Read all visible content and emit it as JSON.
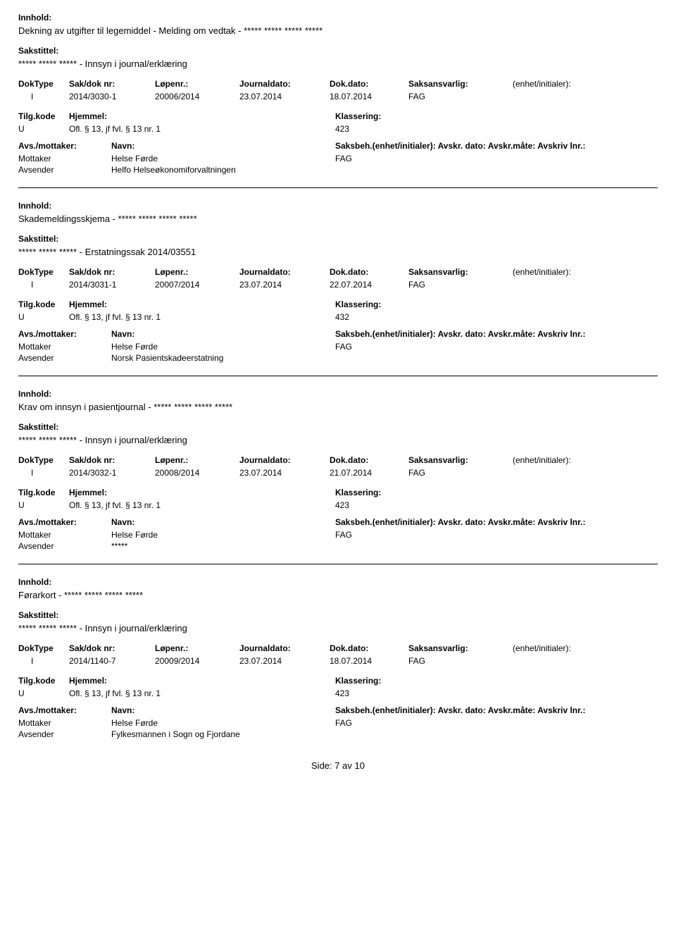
{
  "labels": {
    "innhold": "Innhold:",
    "sakstittel": "Sakstittel:",
    "doktype": "DokType",
    "sakdok": "Sak/dok nr:",
    "lopenr": "Løpenr.:",
    "journaldato": "Journaldato:",
    "dokdato": "Dok.dato:",
    "saksansvarlig": "Saksansvarlig:",
    "enhet": "(enhet/initialer):",
    "tilgkode": "Tilg.kode",
    "hjemmel": "Hjemmel:",
    "klassering": "Klassering:",
    "avsmottaker": "Avs./mottaker:",
    "navn": "Navn:",
    "saksbeh_full": "Saksbeh.(enhet/initialer): Avskr. dato:  Avskr.måte:  Avskriv lnr.:"
  },
  "entries": [
    {
      "innhold": "Dekning av utgifter til legemiddel - Melding om vedtak - ***** ***** ***** *****",
      "sakstittel": "***** ***** ***** - Innsyn i journal/erklæring",
      "doktype": "I",
      "sakdok": "2014/3030-1",
      "lopenr": "20006/2014",
      "journaldato": "23.07.2014",
      "dokdato": "18.07.2014",
      "saksansvarlig": "FAG",
      "enhet": "",
      "tilgkode": "U",
      "hjemmel": "Ofl. § 13, jf fvl. § 13 nr. 1",
      "klassering": "423",
      "parties": [
        {
          "role": "Mottaker",
          "name": "Helse Førde",
          "beh": "FAG"
        },
        {
          "role": "Avsender",
          "name": "Helfo Helseøkonomiforvaltningen",
          "beh": ""
        }
      ]
    },
    {
      "innhold": "Skademeldingsskjema - ***** ***** ***** *****",
      "sakstittel": "***** ***** ***** - Erstatningssak 2014/03551",
      "doktype": "I",
      "sakdok": "2014/3031-1",
      "lopenr": "20007/2014",
      "journaldato": "23.07.2014",
      "dokdato": "22.07.2014",
      "saksansvarlig": "FAG",
      "enhet": "",
      "tilgkode": "U",
      "hjemmel": "Ofl. § 13, jf fvl. § 13 nr. 1",
      "klassering": "432",
      "parties": [
        {
          "role": "Mottaker",
          "name": "Helse Førde",
          "beh": "FAG"
        },
        {
          "role": "Avsender",
          "name": "Norsk Pasientskadeerstatning",
          "beh": ""
        }
      ]
    },
    {
      "innhold": "Krav om innsyn i pasientjournal - ***** ***** ***** *****",
      "sakstittel": "***** ***** ***** - Innsyn i journal/erklæring",
      "doktype": "I",
      "sakdok": "2014/3032-1",
      "lopenr": "20008/2014",
      "journaldato": "23.07.2014",
      "dokdato": "21.07.2014",
      "saksansvarlig": "FAG",
      "enhet": "",
      "tilgkode": "U",
      "hjemmel": "Ofl. § 13, jf fvl. § 13 nr. 1",
      "klassering": "423",
      "parties": [
        {
          "role": "Mottaker",
          "name": "Helse Førde",
          "beh": "FAG"
        },
        {
          "role": "Avsender",
          "name": "*****",
          "beh": ""
        }
      ]
    },
    {
      "innhold": "Førarkort - ***** ***** ***** *****",
      "sakstittel": "***** ***** ***** - Innsyn i journal/erklæring",
      "doktype": "I",
      "sakdok": "2014/1140-7",
      "lopenr": "20009/2014",
      "journaldato": "23.07.2014",
      "dokdato": "18.07.2014",
      "saksansvarlig": "FAG",
      "enhet": "",
      "tilgkode": "U",
      "hjemmel": "Ofl. § 13, jf fvl. § 13 nr. 1",
      "klassering": "423",
      "parties": [
        {
          "role": "Mottaker",
          "name": "Helse Førde",
          "beh": "FAG"
        },
        {
          "role": "Avsender",
          "name": "Fylkesmannen i Sogn og Fjordane",
          "beh": ""
        }
      ]
    }
  ],
  "footer": {
    "prefix": "Side:",
    "page": "7",
    "sep": "av",
    "total": "10"
  }
}
